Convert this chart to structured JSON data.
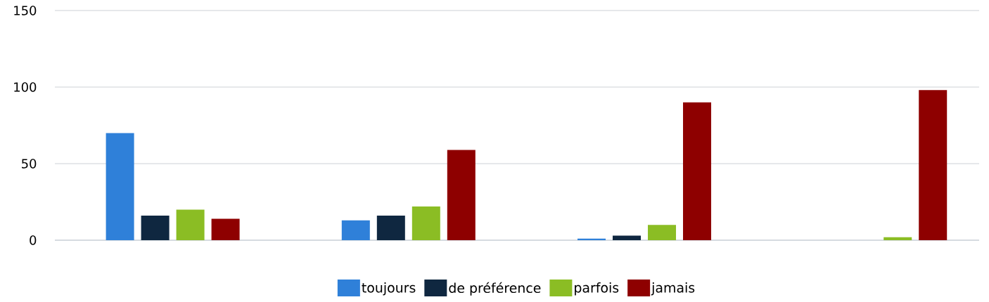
{
  "chart_data": {
    "type": "bar",
    "categories": [
      null,
      null,
      null,
      null
    ],
    "series": [
      {
        "name": "toujours",
        "color": "#2f80d9",
        "values": [
          70,
          13,
          1,
          0
        ]
      },
      {
        "name": "de préférence",
        "color": "#0f2740",
        "values": [
          16,
          16,
          3,
          0
        ]
      },
      {
        "name": "parfois",
        "color": "#8bbd24",
        "values": [
          20,
          22,
          10,
          2
        ]
      },
      {
        "name": "jamais",
        "color": "#8e0000",
        "values": [
          14,
          59,
          90,
          98
        ]
      }
    ],
    "ylim": [
      0,
      150
    ],
    "yticks": [
      0,
      50,
      100,
      150
    ],
    "grid": "y",
    "legend": "bottom",
    "tick_labels": "y"
  }
}
